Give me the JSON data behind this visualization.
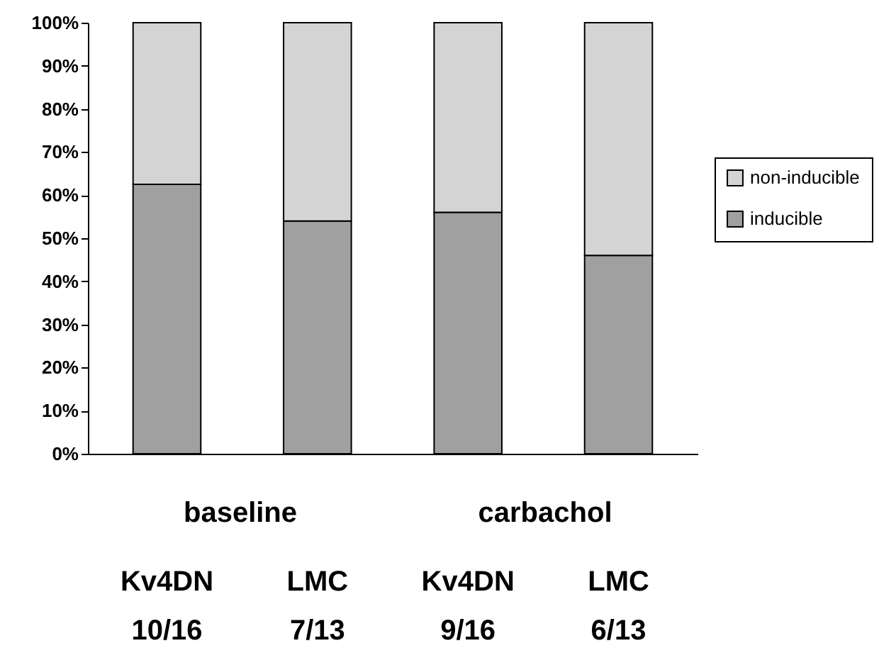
{
  "chart_data": {
    "type": "bar",
    "stacked": true,
    "categories": [
      "Kv4DN",
      "LMC",
      "Kv4DN",
      "LMC"
    ],
    "series": [
      {
        "name": "inducible",
        "color": "#a0a0a0",
        "values": [
          62.5,
          54,
          56,
          46
        ]
      },
      {
        "name": "non-inducible",
        "color": "#d4d4d4",
        "values": [
          37.5,
          46,
          44,
          54
        ]
      }
    ],
    "ylim": [
      0,
      100
    ],
    "yticks": [
      {
        "value": 0,
        "label": "0%"
      },
      {
        "value": 10,
        "label": "10%"
      },
      {
        "value": 20,
        "label": "20%"
      },
      {
        "value": 30,
        "label": "30%"
      },
      {
        "value": 40,
        "label": "40%"
      },
      {
        "value": 50,
        "label": "50%"
      },
      {
        "value": 60,
        "label": "60%"
      },
      {
        "value": 70,
        "label": "70%"
      },
      {
        "value": 80,
        "label": "80%"
      },
      {
        "value": 90,
        "label": "90%"
      },
      {
        "value": 100,
        "label": "100%"
      }
    ],
    "annotations": [
      "baseline",
      "carbachol",
      "10/16",
      "7/13",
      "9/16",
      "6/13"
    ],
    "grid": false,
    "legend": "right"
  }
}
